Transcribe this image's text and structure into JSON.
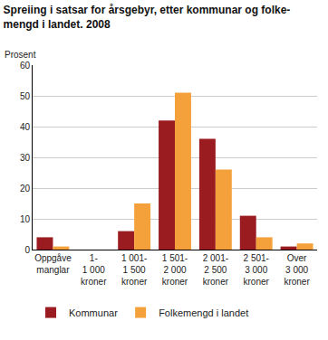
{
  "chart_data": {
    "type": "bar",
    "title": "Spreiing i satsar for årsgebyr, etter kommunar og folke-\nmengd i landet. 2008",
    "y_label": "Prosent",
    "categories": [
      "Oppgåve\nmanglar",
      "1-\n1 000\nkroner",
      "1 001-\n1 500\nkroner",
      "1 501-\n2 000\nkroner",
      "2 001-\n2 500\nkroner",
      "2 501-\n3 000\nkroner",
      "Over\n3 000\nkroner"
    ],
    "series": [
      {
        "name": "Kommunar",
        "color": "#9b1c20",
        "values": [
          4,
          0,
          6,
          42,
          36,
          11,
          1
        ]
      },
      {
        "name": "Folkemengd i landet",
        "color": "#f4a13c",
        "values": [
          1,
          0,
          15,
          51,
          26,
          4,
          2
        ]
      }
    ],
    "ylim": [
      0,
      60
    ],
    "yticks": [
      0,
      10,
      20,
      30,
      40,
      50,
      60
    ],
    "grid": true,
    "legend": "bottom"
  }
}
